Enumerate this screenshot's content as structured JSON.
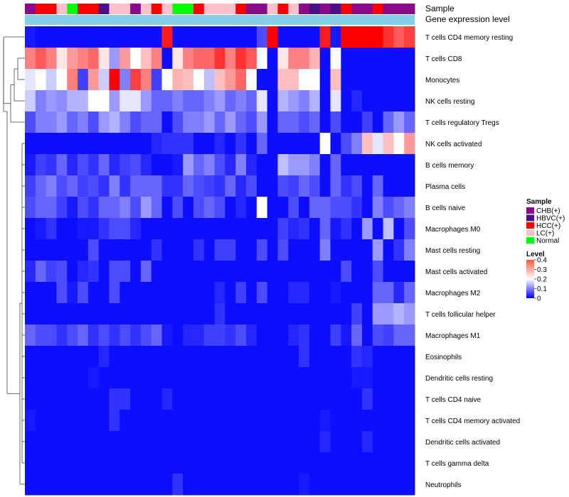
{
  "chart_data": {
    "type": "heatmap",
    "annotation_labels": [
      "Sample",
      "Gene expression level"
    ],
    "sample_annotation": [
      "CHB(+)",
      "HCC(+)",
      "HCC(+)",
      "LC(+)",
      "Normal",
      "HCC(+)",
      "HCC(+)",
      "HBVC(+)",
      "LC(+)",
      "LC(+)",
      "CHB(+)",
      "LC(+)",
      "HCC(+)",
      "LC(+)",
      "Normal",
      "Normal",
      "HCC(+)",
      "LC(+)",
      "LC(+)",
      "LC(+)",
      "HCC(+)",
      "CHB(+)",
      "CHB(+)",
      "LC(+)",
      "HCC(+)",
      "LC(+)",
      "CHB(+)",
      "HBVC(+)",
      "CHB(+)",
      "HBVC(+)",
      "HCC(+)",
      "CHB(+)",
      "CHB(+)",
      "HCC(+)",
      "CHB(+)",
      "CHB(+)",
      "CHB(+)"
    ],
    "rows": [
      "T cells CD4 memory resting",
      "T cells CD8",
      "Monocytes",
      "NK cells resting",
      "T cells regulatory  Tregs",
      "NK cells activated",
      "B cells memory",
      "Plasma cells",
      "B cells naive",
      "Macrophages M0",
      "Mast cells resting",
      "Mast cells activated",
      "Macrophages M2",
      "T cells follicular helper",
      "Macrophages M1",
      "Eosinophils",
      "Dendritic cells resting",
      "T cells CD4 naive",
      "T cells CD4 memory activated",
      "Dendritic cells activated",
      "T cells gamma delta",
      "Neutrophils"
    ],
    "values": [
      [
        0.02,
        0.01,
        0.01,
        0.01,
        0.01,
        0.01,
        0.01,
        0.01,
        0.01,
        0.01,
        0.01,
        0.01,
        0.01,
        0.38,
        0.01,
        0.01,
        0.01,
        0.01,
        0.01,
        0.01,
        0.01,
        0.01,
        0.06,
        0.4,
        0.01,
        0.01,
        0.01,
        0.01,
        0.38,
        0.02,
        0.4,
        0.4,
        0.4,
        0.4,
        0.36,
        0.33,
        0.35
      ],
      [
        0.3,
        0.33,
        0.3,
        0.22,
        0.28,
        0.3,
        0.32,
        0.22,
        0.12,
        0.28,
        0.2,
        0.25,
        0.3,
        0.01,
        0.22,
        0.3,
        0.32,
        0.32,
        0.36,
        0.3,
        0.36,
        0.33,
        0.2,
        0.01,
        0.22,
        0.3,
        0.3,
        0.26,
        0.01,
        0.2,
        0.01,
        0.01,
        0.01,
        0.01,
        0.01,
        0.01,
        0.01
      ],
      [
        0.18,
        0.2,
        0.16,
        0.2,
        0.3,
        0.05,
        0.28,
        0.16,
        0.4,
        0.1,
        0.35,
        0.3,
        0.05,
        0.2,
        0.26,
        0.25,
        0.2,
        0.15,
        0.25,
        0.28,
        0.32,
        0.2,
        0.01,
        0.01,
        0.25,
        0.25,
        0.2,
        0.2,
        0.01,
        0.25,
        0.01,
        0.01,
        0.01,
        0.01,
        0.01,
        0.01,
        0.01
      ],
      [
        0.16,
        0.1,
        0.12,
        0.11,
        0.14,
        0.14,
        0.2,
        0.2,
        0.12,
        0.18,
        0.18,
        0.12,
        0.08,
        0.08,
        0.1,
        0.08,
        0.08,
        0.1,
        0.12,
        0.08,
        0.1,
        0.08,
        0.18,
        0.01,
        0.14,
        0.12,
        0.1,
        0.14,
        0.01,
        0.18,
        0.01,
        0.03,
        0.01,
        0.01,
        0.01,
        0.01,
        0.01
      ],
      [
        0.06,
        0.1,
        0.1,
        0.12,
        0.08,
        0.1,
        0.06,
        0.12,
        0.14,
        0.1,
        0.06,
        0.08,
        0.08,
        0.01,
        0.06,
        0.1,
        0.1,
        0.12,
        0.08,
        0.12,
        0.08,
        0.06,
        0.12,
        0.01,
        0.08,
        0.08,
        0.06,
        0.08,
        0.01,
        0.06,
        0.01,
        0.01,
        0.05,
        0.01,
        0.08,
        0.12,
        0.08
      ],
      [
        0.01,
        0.01,
        0.01,
        0.01,
        0.01,
        0.01,
        0.01,
        0.01,
        0.01,
        0.01,
        0.01,
        0.01,
        0.03,
        0.04,
        0.04,
        0.04,
        0.01,
        0.01,
        0.03,
        0.01,
        0.04,
        0.01,
        0.08,
        0.01,
        0.01,
        0.01,
        0.01,
        0.01,
        0.2,
        0.01,
        0.06,
        0.1,
        0.25,
        0.18,
        0.25,
        0.2,
        0.28
      ],
      [
        0.02,
        0.05,
        0.04,
        0.08,
        0.03,
        0.06,
        0.04,
        0.08,
        0.03,
        0.05,
        0.06,
        0.03,
        0.01,
        0.01,
        0.02,
        0.12,
        0.08,
        0.1,
        0.06,
        0.03,
        0.1,
        0.03,
        0.01,
        0.01,
        0.15,
        0.12,
        0.12,
        0.1,
        0.01,
        0.08,
        0.01,
        0.01,
        0.01,
        0.01,
        0.01,
        0.01,
        0.01
      ],
      [
        0.05,
        0.08,
        0.1,
        0.06,
        0.08,
        0.05,
        0.06,
        0.04,
        0.1,
        0.04,
        0.08,
        0.08,
        0.08,
        0.04,
        0.04,
        0.08,
        0.06,
        0.05,
        0.04,
        0.08,
        0.03,
        0.06,
        0.01,
        0.01,
        0.06,
        0.05,
        0.08,
        0.06,
        0.01,
        0.08,
        0.04,
        0.06,
        0.01,
        0.08,
        0.01,
        0.01,
        0.01
      ],
      [
        0.06,
        0.08,
        0.08,
        0.05,
        0.02,
        0.06,
        0.04,
        0.08,
        0.08,
        0.1,
        0.06,
        0.12,
        0.08,
        0.01,
        0.06,
        0.01,
        0.06,
        0.08,
        0.06,
        0.01,
        0.03,
        0.01,
        0.2,
        0.01,
        0.01,
        0.06,
        0.01,
        0.08,
        0.08,
        0.06,
        0.06,
        0.04,
        0.01,
        0.1,
        0.06,
        0.08,
        0.1
      ],
      [
        0.01,
        0.02,
        0.04,
        0.01,
        0.01,
        0.02,
        0.02,
        0.04,
        0.06,
        0.06,
        0.03,
        0.01,
        0.01,
        0.01,
        0.01,
        0.01,
        0.01,
        0.01,
        0.01,
        0.01,
        0.01,
        0.01,
        0.01,
        0.01,
        0.05,
        0.03,
        0.04,
        0.01,
        0.08,
        0.02,
        0.04,
        0.01,
        0.12,
        0.01,
        0.15,
        0.01,
        0.06
      ],
      [
        0.01,
        0.01,
        0.01,
        0.01,
        0.01,
        0.01,
        0.06,
        0.01,
        0.01,
        0.01,
        0.01,
        0.01,
        0.04,
        0.01,
        0.01,
        0.01,
        0.04,
        0.01,
        0.05,
        0.05,
        0.01,
        0.01,
        0.06,
        0.01,
        0.06,
        0.01,
        0.01,
        0.01,
        0.1,
        0.01,
        0.01,
        0.01,
        0.01,
        0.12,
        0.01,
        0.04,
        0.1
      ],
      [
        0.03,
        0.08,
        0.05,
        0.06,
        0.01,
        0.03,
        0.04,
        0.01,
        0.06,
        0.06,
        0.01,
        0.08,
        0.01,
        0.01,
        0.01,
        0.01,
        0.01,
        0.01,
        0.01,
        0.01,
        0.01,
        0.01,
        0.01,
        0.01,
        0.01,
        0.01,
        0.01,
        0.01,
        0.01,
        0.01,
        0.06,
        0.01,
        0.01,
        0.06,
        0.01,
        0.01,
        0.01
      ],
      [
        0.01,
        0.01,
        0.01,
        0.06,
        0.02,
        0.06,
        0.01,
        0.01,
        0.06,
        0.01,
        0.01,
        0.01,
        0.01,
        0.01,
        0.01,
        0.01,
        0.01,
        0.01,
        0.03,
        0.01,
        0.05,
        0.01,
        0.06,
        0.01,
        0.01,
        0.03,
        0.03,
        0.01,
        0.01,
        0.02,
        0.01,
        0.01,
        0.01,
        0.08,
        0.08,
        0.03,
        0.08
      ],
      [
        0.01,
        0.01,
        0.01,
        0.01,
        0.01,
        0.01,
        0.01,
        0.01,
        0.01,
        0.01,
        0.01,
        0.01,
        0.01,
        0.01,
        0.01,
        0.01,
        0.01,
        0.01,
        0.04,
        0.01,
        0.01,
        0.01,
        0.01,
        0.01,
        0.01,
        0.01,
        0.01,
        0.01,
        0.01,
        0.01,
        0.01,
        0.05,
        0.01,
        0.12,
        0.12,
        0.14,
        0.12
      ],
      [
        0.08,
        0.06,
        0.06,
        0.04,
        0.06,
        0.08,
        0.04,
        0.06,
        0.04,
        0.06,
        0.04,
        0.06,
        0.08,
        0.02,
        0.01,
        0.03,
        0.03,
        0.05,
        0.05,
        0.04,
        0.06,
        0.03,
        0.01,
        0.01,
        0.01,
        0.03,
        0.04,
        0.01,
        0.01,
        0.05,
        0.02,
        0.08,
        0.01,
        0.06,
        0.05,
        0.08,
        0.08
      ],
      [
        0.01,
        0.01,
        0.01,
        0.01,
        0.01,
        0.01,
        0.01,
        0.03,
        0.01,
        0.01,
        0.01,
        0.01,
        0.01,
        0.01,
        0.01,
        0.01,
        0.01,
        0.01,
        0.01,
        0.01,
        0.01,
        0.01,
        0.01,
        0.01,
        0.01,
        0.01,
        0.04,
        0.01,
        0.01,
        0.01,
        0.01,
        0.04,
        0.03,
        0.01,
        0.01,
        0.01,
        0.01
      ],
      [
        0.01,
        0.01,
        0.01,
        0.01,
        0.01,
        0.01,
        0.02,
        0.01,
        0.01,
        0.01,
        0.01,
        0.01,
        0.01,
        0.01,
        0.01,
        0.01,
        0.01,
        0.01,
        0.01,
        0.01,
        0.01,
        0.01,
        0.01,
        0.01,
        0.01,
        0.01,
        0.01,
        0.01,
        0.01,
        0.01,
        0.01,
        0.02,
        0.02,
        0.01,
        0.01,
        0.01,
        0.01
      ],
      [
        0.01,
        0.01,
        0.01,
        0.01,
        0.01,
        0.01,
        0.01,
        0.01,
        0.04,
        0.04,
        0.01,
        0.01,
        0.01,
        0.03,
        0.01,
        0.01,
        0.01,
        0.01,
        0.01,
        0.01,
        0.01,
        0.01,
        0.01,
        0.01,
        0.01,
        0.01,
        0.01,
        0.01,
        0.01,
        0.01,
        0.01,
        0.01,
        0.04,
        0.01,
        0.01,
        0.01,
        0.01
      ],
      [
        0.02,
        0.01,
        0.01,
        0.01,
        0.01,
        0.01,
        0.01,
        0.01,
        0.04,
        0.01,
        0.01,
        0.01,
        0.01,
        0.01,
        0.01,
        0.01,
        0.01,
        0.01,
        0.01,
        0.01,
        0.01,
        0.01,
        0.01,
        0.01,
        0.01,
        0.01,
        0.01,
        0.01,
        0.02,
        0.01,
        0.01,
        0.01,
        0.01,
        0.01,
        0.01,
        0.01,
        0.01
      ],
      [
        0.01,
        0.01,
        0.01,
        0.01,
        0.01,
        0.01,
        0.01,
        0.01,
        0.01,
        0.01,
        0.01,
        0.01,
        0.01,
        0.01,
        0.01,
        0.01,
        0.01,
        0.01,
        0.01,
        0.01,
        0.01,
        0.01,
        0.01,
        0.01,
        0.01,
        0.01,
        0.01,
        0.01,
        0.03,
        0.01,
        0.01,
        0.01,
        0.03,
        0.01,
        0.01,
        0.01,
        0.01
      ],
      [
        0.01,
        0.01,
        0.01,
        0.01,
        0.01,
        0.01,
        0.01,
        0.01,
        0.01,
        0.01,
        0.01,
        0.01,
        0.01,
        0.01,
        0.01,
        0.01,
        0.01,
        0.01,
        0.01,
        0.01,
        0.01,
        0.01,
        0.01,
        0.01,
        0.01,
        0.01,
        0.01,
        0.01,
        0.01,
        0.01,
        0.01,
        0.01,
        0.01,
        0.01,
        0.01,
        0.01,
        0.01
      ],
      [
        0.01,
        0.01,
        0.01,
        0.01,
        0.01,
        0.01,
        0.01,
        0.01,
        0.01,
        0.01,
        0.01,
        0.01,
        0.01,
        0.01,
        0.04,
        0.01,
        0.01,
        0.01,
        0.01,
        0.01,
        0.01,
        0.01,
        0.01,
        0.01,
        0.01,
        0.01,
        0.02,
        0.01,
        0.01,
        0.01,
        0.01,
        0.01,
        0.01,
        0.01,
        0.01,
        0.01,
        0.01
      ]
    ],
    "color_scale": {
      "range": [
        0,
        0.4
      ],
      "low": "#0000ff",
      "mid": "#ffffff",
      "high": "#ff0000",
      "mid_value": 0.2
    },
    "legend_sample": {
      "title": "Sample",
      "items": [
        {
          "label": "CHB(+)",
          "color": "#8b0a8c"
        },
        {
          "label": "HBVC(+)",
          "color": "#4b0f8a"
        },
        {
          "label": "HCC(+)",
          "color": "#ff0000"
        },
        {
          "label": "LC(+)",
          "color": "#ffc0cb"
        },
        {
          "label": "Normal",
          "color": "#00ff00"
        }
      ]
    },
    "legend_level": {
      "title": "Level",
      "ticks": [
        "0.4",
        "0.3",
        "0.2",
        "0.1",
        "0"
      ]
    },
    "annotation_colors": {
      "CHB(+)": "#8b0a8c",
      "HBVC(+)": "#4b0f8a",
      "HCC(+)": "#ff0000",
      "LC(+)": "#ffc0cb",
      "Normal": "#00ff00",
      "gene_expression": "#87ceeb"
    }
  }
}
